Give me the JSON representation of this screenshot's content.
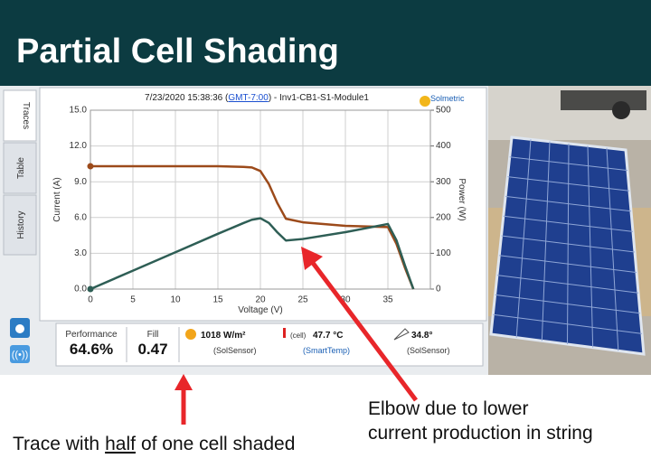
{
  "header": {
    "title": "Partial Cell Shading"
  },
  "app": {
    "tabs": [
      "Traces",
      "Table",
      "History"
    ],
    "trace_title": [
      "7/23/2020 15:38:36 (",
      "GMT-7:00",
      ") - Inv1-CB1-S1-Module1"
    ],
    "brand": "Solmetric",
    "status": {
      "performance": {
        "label": "Performance",
        "value": "64.6%"
      },
      "fill": {
        "label": "Fill",
        "value": "0.47"
      },
      "irradiance": {
        "value": "1018 W/m²",
        "source": "(SolSensor)"
      },
      "temperature": {
        "prefix": "(cell)",
        "value": "47.7 °C",
        "source": "(SmartTemp)"
      },
      "tilt": {
        "value": "34.8°",
        "source": "(SolSensor)"
      }
    }
  },
  "chart_data": {
    "type": "line",
    "x_label": "Voltage (V)",
    "y_label": "Current (A)",
    "y2_label": "Power (W)",
    "x": [
      0,
      5,
      10,
      15,
      18,
      19,
      20,
      21,
      22,
      23,
      25,
      30,
      35,
      36,
      37,
      38
    ],
    "xlim": [
      0,
      40
    ],
    "xticks": [
      0,
      5,
      10,
      15,
      20,
      25,
      30,
      35
    ],
    "ylim": [
      0,
      15
    ],
    "yticks": [
      {
        "value": 0,
        "label": "0.0"
      },
      {
        "value": 3,
        "label": "3.0"
      },
      {
        "value": 6,
        "label": "6.0"
      },
      {
        "value": 9,
        "label": "9.0"
      },
      {
        "value": 12,
        "label": "12.0"
      },
      {
        "value": 15,
        "label": "15.0"
      }
    ],
    "y2lim": [
      0,
      500
    ],
    "y2ticks": [
      0,
      100,
      200,
      300,
      400,
      500
    ],
    "grid": true,
    "series": [
      {
        "color": "#9c4a1a",
        "axis": "y",
        "values": [
          10.3,
          10.3,
          10.3,
          10.3,
          10.25,
          10.2,
          9.9,
          8.8,
          7.2,
          5.9,
          5.6,
          5.3,
          5.2,
          3.8,
          1.8,
          0
        ]
      },
      {
        "color": "#2e5e55",
        "axis": "y2",
        "values": [
          0,
          51.5,
          103,
          154.5,
          184.5,
          193.8,
          198,
          184.8,
          158.4,
          135.7,
          140,
          159,
          182,
          136.8,
          66.6,
          0
        ]
      }
    ]
  },
  "annotations": {
    "elbow": [
      "Elbow due to lower",
      "current production in string"
    ],
    "trace": [
      "Trace with",
      "half",
      "of one cell shaded"
    ]
  }
}
